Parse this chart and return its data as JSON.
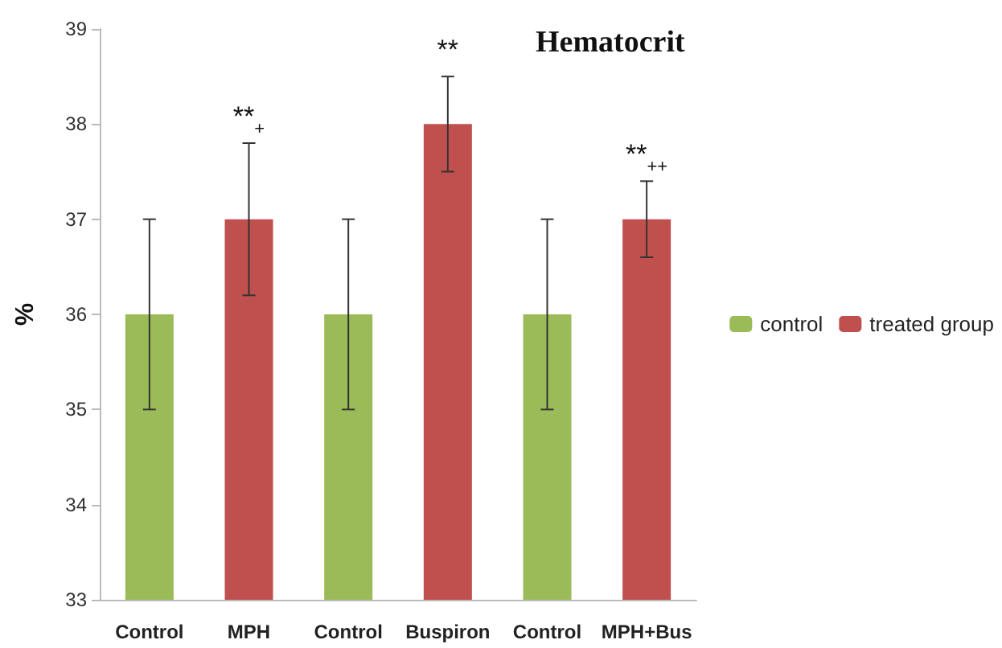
{
  "chart_data": {
    "type": "bar",
    "title": "Hematocrit",
    "ylabel": "%",
    "categories": [
      "Control",
      "MPH",
      "Control",
      "Buspiron",
      "Control",
      "MPH+Bus"
    ],
    "series": [
      {
        "name": "control",
        "color": "#9bbb59",
        "values": [
          36,
          null,
          36,
          null,
          36,
          null
        ],
        "errors": [
          1,
          null,
          1,
          null,
          1,
          null
        ]
      },
      {
        "name": "treated group",
        "color": "#c0504d",
        "values": [
          null,
          37,
          null,
          38,
          null,
          37
        ],
        "errors": [
          null,
          0.8,
          null,
          0.5,
          null,
          0.4
        ]
      }
    ],
    "ylim": [
      33,
      39
    ],
    "yticks": [
      33,
      34,
      35,
      36,
      37,
      38,
      39
    ],
    "grid": false,
    "legend": "right",
    "annotations": [
      {
        "text": "**$_{+}$",
        "x": "MPH",
        "y": 37.8
      },
      {
        "text": "**",
        "x": "Buspiron",
        "y": 38.5
      },
      {
        "text": "**$_{++}$",
        "x": "MPH+Bus",
        "y": 37.4
      }
    ]
  }
}
